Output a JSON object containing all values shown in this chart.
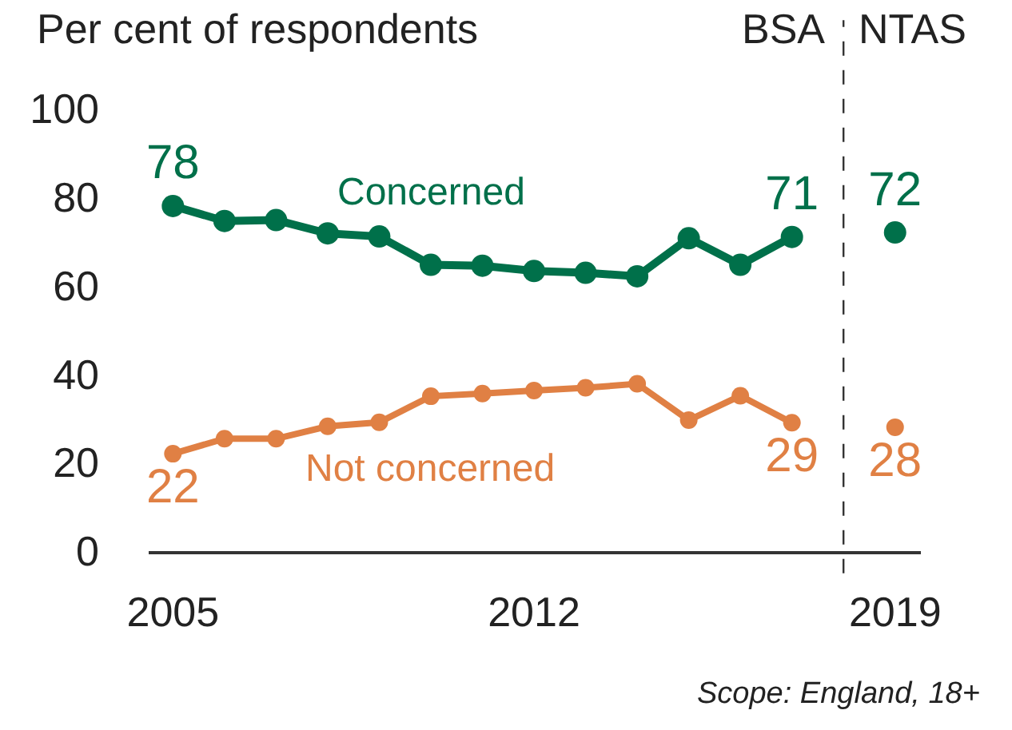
{
  "chart_data": {
    "type": "line",
    "ylabel": "Per cent of respondents",
    "x": [
      2005,
      2006,
      2007,
      2008,
      2009,
      2010,
      2011,
      2012,
      2013,
      2014,
      2015,
      2016,
      2017,
      2018,
      2019
    ],
    "series": [
      {
        "name": "Concerned",
        "color": "#00704a",
        "values": [
          78,
          74.6,
          74.8,
          71.8,
          71.1,
          64.7,
          64.5,
          63.3,
          62.9,
          62.1,
          70.7,
          64.7,
          71,
          null,
          72
        ],
        "value_labels": [
          "78",
          null,
          null,
          null,
          null,
          null,
          null,
          null,
          null,
          null,
          null,
          null,
          "71",
          null,
          "72"
        ]
      },
      {
        "name": "Not concerned",
        "color": "#e08044",
        "values": [
          22,
          25.4,
          25.4,
          28.2,
          29.1,
          35,
          35.6,
          36.3,
          36.9,
          37.8,
          29.6,
          35.1,
          29,
          null,
          28
        ],
        "value_labels": [
          "22",
          null,
          null,
          null,
          null,
          null,
          null,
          null,
          null,
          null,
          null,
          null,
          "29",
          null,
          "28"
        ]
      }
    ],
    "xlim": [
      2004.53,
      2019.5
    ],
    "xticks": [
      2005,
      2012,
      2019
    ],
    "ylim": [
      0,
      100
    ],
    "yticks": [
      0,
      20,
      40,
      60,
      80,
      100
    ],
    "marker": "circle",
    "line_style": "solid",
    "grid": false,
    "legend": false,
    "ref_lines": [
      {
        "axis": "x",
        "value": 2018,
        "color": "#333333",
        "line_style": "dashed"
      }
    ],
    "annotations": [
      "BSA",
      "NTAS",
      "Scope: England, 18+"
    ]
  }
}
